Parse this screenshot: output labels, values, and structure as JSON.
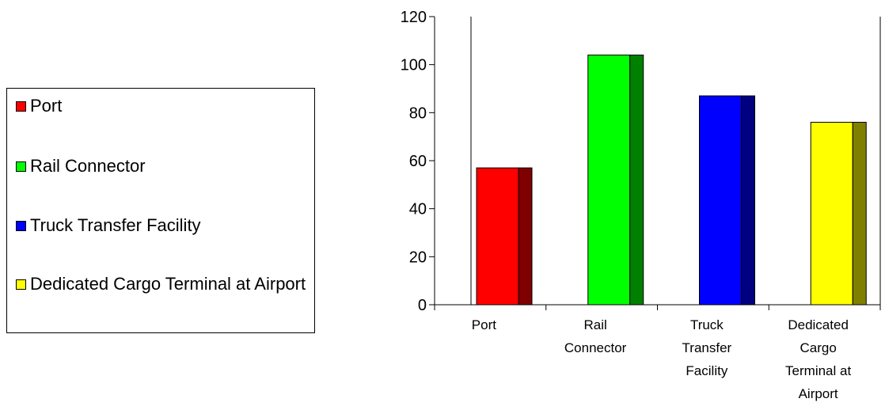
{
  "chart_data": {
    "type": "bar",
    "categories": [
      [
        "Port"
      ],
      [
        "Rail",
        "Connector"
      ],
      [
        "Truck",
        "Transfer",
        "Facility"
      ],
      [
        "Dedicated",
        "Cargo",
        "Terminal at",
        "Airport"
      ]
    ],
    "values": [
      57,
      104,
      87,
      76
    ],
    "ylim": [
      0,
      120
    ],
    "yticks": [
      "0",
      "20",
      "40",
      "60",
      "80",
      "100",
      "120"
    ],
    "grid": false,
    "legend_position": "left",
    "colors": {
      "front": [
        "#ff0000",
        "#00ff00",
        "#0000ff",
        "#ffff00"
      ],
      "side": [
        "#800000",
        "#008000",
        "#000080",
        "#808000"
      ]
    }
  },
  "legend": {
    "items": [
      {
        "label": "Port",
        "color": "#ff0000"
      },
      {
        "label": "Rail Connector",
        "color": "#00ff00"
      },
      {
        "label": "Truck Transfer Facility",
        "color": "#0000ff"
      },
      {
        "label": "Dedicated Cargo Terminal at Airport",
        "color": "#ffff00"
      }
    ]
  }
}
